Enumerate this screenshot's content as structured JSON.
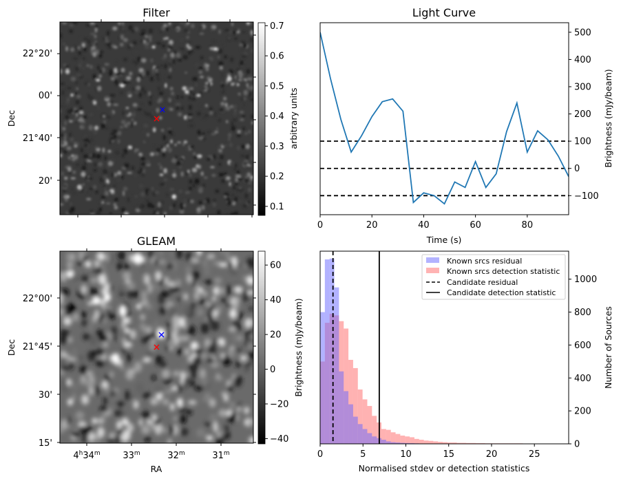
{
  "chart_data": [
    {
      "type": "heatmap",
      "title": "Filter",
      "xlabel": "",
      "ylabel": "Dec",
      "y_tick_labels": [
        "22°20'",
        "00'",
        "21°40'",
        "20'"
      ],
      "colorbar": {
        "label": "arbitrary units",
        "ticks": [
          "0.1",
          "0.2",
          "0.3",
          "0.4",
          "0.5",
          "0.6",
          "0.7"
        ],
        "range": [
          0.07,
          0.71
        ],
        "colormap": "gray"
      },
      "markers": [
        {
          "name": "blue-cross",
          "color": "#0000ff",
          "symbol": "x"
        },
        {
          "name": "red-cross",
          "color": "#ff0000",
          "symbol": "x"
        }
      ]
    },
    {
      "type": "line",
      "title": "Light Curve",
      "xlabel": "Time (s)",
      "ylabel": "Brightness (mJy/beam)",
      "xlim": [
        0,
        96
      ],
      "ylim": [
        -170,
        535
      ],
      "x_ticks": [
        "0",
        "20",
        "40",
        "60",
        "80"
      ],
      "y_ticks": [
        "500",
        "400",
        "300",
        "200",
        "100",
        "0",
        "−100"
      ],
      "series": [
        {
          "name": "light-curve",
          "color": "#1f77b4",
          "x": [
            0,
            4,
            8,
            12,
            16,
            20,
            24,
            28,
            32,
            36,
            40,
            44,
            48,
            52,
            56,
            60,
            64,
            68,
            72,
            76,
            80,
            84,
            88,
            92,
            96
          ],
          "y": [
            500,
            330,
            180,
            60,
            120,
            190,
            245,
            255,
            210,
            -125,
            -90,
            -100,
            -130,
            -50,
            -70,
            25,
            -70,
            -20,
            135,
            240,
            60,
            138,
            105,
            45,
            -30
          ]
        }
      ],
      "hlines": [
        {
          "y": 100,
          "style": "dashed",
          "color": "#000000"
        },
        {
          "y": 0,
          "style": "dashed",
          "color": "#000000"
        },
        {
          "y": -100,
          "style": "dashed",
          "color": "#000000"
        }
      ]
    },
    {
      "type": "heatmap",
      "title": "GLEAM",
      "xlabel": "RA",
      "ylabel": "Dec",
      "x_tick_labels": [
        {
          "h": "4",
          "m": "34"
        },
        {
          "h": "",
          "m": "33"
        },
        {
          "h": "",
          "m": "32"
        },
        {
          "h": "",
          "m": "31"
        }
      ],
      "y_tick_labels": [
        "22°00'",
        "21°45'",
        "30'",
        "15'"
      ],
      "colorbar": {
        "label": "Brightness (mJy/beam)",
        "ticks": [
          "60",
          "40",
          "20",
          "0",
          "−20",
          "−40"
        ],
        "range": [
          -43,
          68
        ],
        "colormap": "gray"
      },
      "markers": [
        {
          "name": "blue-cross",
          "color": "#0000ff",
          "symbol": "x"
        },
        {
          "name": "red-cross",
          "color": "#ff0000",
          "symbol": "x"
        }
      ]
    },
    {
      "type": "bar",
      "subtype": "histogram",
      "title": "",
      "xlabel": "Normalised stdev or detection statistics",
      "ylabel": "Number of Sources",
      "xlim": [
        0,
        29
      ],
      "ylim": [
        0,
        1170
      ],
      "x_ticks": [
        "0",
        "5",
        "10",
        "15",
        "20",
        "25"
      ],
      "y_ticks": [
        "0",
        "200",
        "400",
        "600",
        "800",
        "1000"
      ],
      "bin_width": 0.55,
      "series": [
        {
          "name": "Known srcs residual",
          "color": "#b3b3ff",
          "bin_start": 0,
          "counts": [
            800,
            1120,
            1125,
            950,
            440,
            320,
            240,
            165,
            120,
            90,
            65,
            45,
            35,
            25,
            15,
            10,
            8,
            6,
            5,
            4,
            3,
            2,
            2,
            2,
            1,
            1,
            1,
            1,
            1,
            1
          ]
        },
        {
          "name": "Known srcs detection statistic",
          "color": "#ffb3b3",
          "bin_start": 0,
          "counts": [
            500,
            735,
            790,
            780,
            745,
            700,
            510,
            460,
            330,
            270,
            230,
            170,
            130,
            90,
            85,
            70,
            60,
            50,
            45,
            40,
            30,
            25,
            20,
            18,
            15,
            12,
            10,
            8,
            8,
            6,
            6,
            5,
            5,
            4,
            4,
            3,
            3,
            3,
            3,
            3,
            3,
            3,
            3,
            2,
            2,
            2,
            2,
            2,
            2,
            2,
            2
          ]
        }
      ],
      "vlines": [
        {
          "name": "Candidate residual",
          "x": 1.5,
          "style": "dashed",
          "color": "#000000"
        },
        {
          "name": "Candidate detection statistic",
          "x": 6.9,
          "style": "solid",
          "color": "#000000"
        }
      ],
      "legend": {
        "position": "top-right",
        "entries": [
          "Known srcs residual",
          "Known srcs detection statistic",
          "Candidate residual",
          "Candidate detection statistic"
        ]
      }
    }
  ]
}
